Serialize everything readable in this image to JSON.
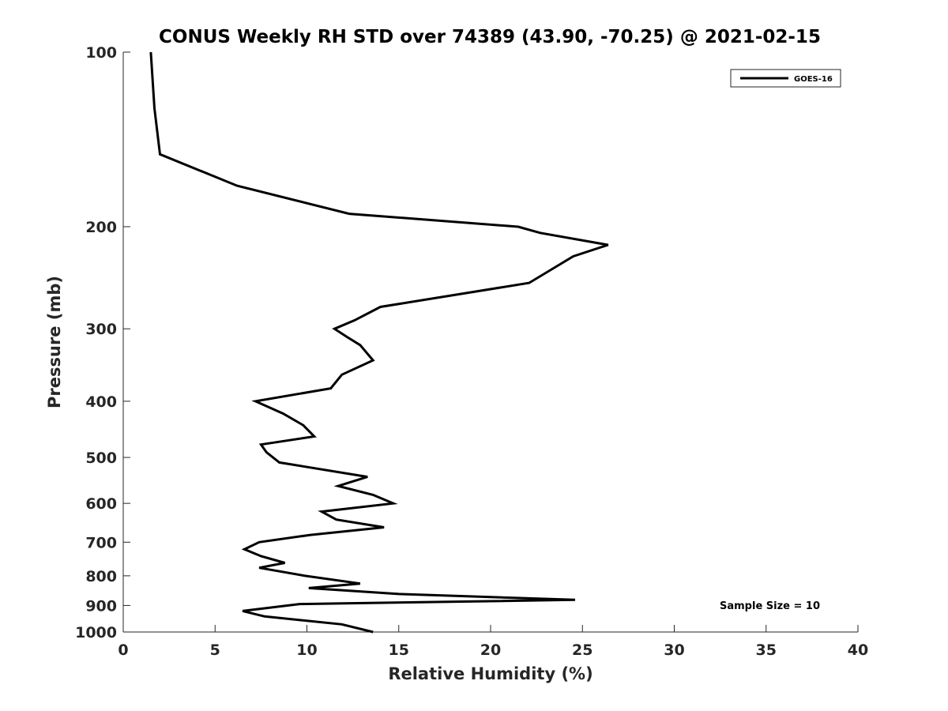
{
  "chart_data": {
    "type": "line",
    "title": "CONUS Weekly RH STD over 74389 (43.90, -70.25) @ 2021-02-15",
    "xlabel": "Relative Humidity (%)",
    "ylabel": "Pressure (mb)",
    "xlim": [
      0,
      40
    ],
    "ylim": [
      100,
      1000
    ],
    "y_scale": "log",
    "y_reversed": true,
    "xticks": [
      0,
      5,
      10,
      15,
      20,
      25,
      30,
      35,
      40
    ],
    "yticks": [
      100,
      200,
      300,
      400,
      500,
      600,
      700,
      800,
      900,
      1000
    ],
    "grid": false,
    "legend_position": "top-right",
    "series": [
      {
        "name": "GOES-16",
        "color": "#000000",
        "points": [
          [
            1.5,
            100
          ],
          [
            1.7,
            125
          ],
          [
            2.0,
            150
          ],
          [
            6.2,
            170
          ],
          [
            12.3,
            190
          ],
          [
            21.5,
            200
          ],
          [
            22.7,
            205
          ],
          [
            26.4,
            215
          ],
          [
            24.5,
            225
          ],
          [
            22.1,
            250
          ],
          [
            14.0,
            275
          ],
          [
            12.6,
            290
          ],
          [
            11.5,
            300
          ],
          [
            12.2,
            310
          ],
          [
            12.9,
            320
          ],
          [
            13.6,
            340
          ],
          [
            11.9,
            360
          ],
          [
            11.3,
            380
          ],
          [
            7.2,
            400
          ],
          [
            8.7,
            420
          ],
          [
            9.8,
            440
          ],
          [
            10.4,
            460
          ],
          [
            7.5,
            475
          ],
          [
            7.8,
            490
          ],
          [
            8.5,
            510
          ],
          [
            13.3,
            540
          ],
          [
            11.7,
            560
          ],
          [
            13.6,
            580
          ],
          [
            14.7,
            600
          ],
          [
            10.8,
            620
          ],
          [
            11.6,
            640
          ],
          [
            14.2,
            660
          ],
          [
            10.2,
            680
          ],
          [
            7.4,
            700
          ],
          [
            6.6,
            720
          ],
          [
            7.5,
            740
          ],
          [
            8.8,
            760
          ],
          [
            7.4,
            775
          ],
          [
            9.9,
            800
          ],
          [
            12.9,
            825
          ],
          [
            10.1,
            840
          ],
          [
            15.0,
            860
          ],
          [
            24.6,
            880
          ],
          [
            9.6,
            895
          ],
          [
            6.5,
            920
          ],
          [
            7.7,
            940
          ],
          [
            11.9,
            970
          ],
          [
            13.6,
            1000
          ]
        ]
      }
    ],
    "annotations": [
      "Sample Size = 10"
    ]
  }
}
